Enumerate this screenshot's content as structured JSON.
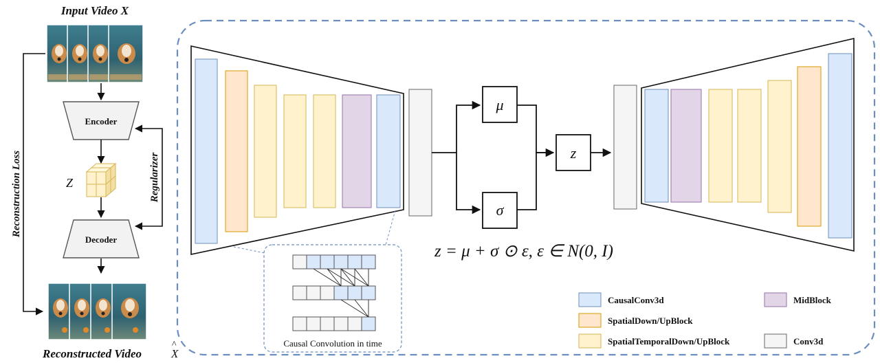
{
  "left": {
    "input_title": "Input Video X",
    "output_title_text": "Reconstructed Video",
    "output_title_symbol": "X",
    "output_title_hat": "^",
    "encoder": "Encoder",
    "decoder": "Decoder",
    "latent": "Z",
    "regularizer": "Regularizer",
    "loss": "Reconstruction Loss"
  },
  "vae": {
    "mu": "μ",
    "sigma": "σ",
    "z": "z",
    "equation": "z = μ + σ ⊙ ε, ε ∈ N(0, I)"
  },
  "causal": {
    "caption": "Causal Convolution in time"
  },
  "colors": {
    "causal_conv3d": "#dae8fc",
    "causal_conv3d_stroke": "#6c8ebf",
    "spatial_down_up": "#ffe6cc",
    "spatial_down_up_stroke": "#d79b00",
    "spatial_temporal": "#fff2cc",
    "spatial_temporal_stroke": "#d6b656",
    "mid_block": "#e1d5e7",
    "mid_block_stroke": "#9673a6",
    "conv3d": "#f5f5f5",
    "conv3d_stroke": "#666666",
    "dashed_border": "#6c8ebf"
  },
  "legend": [
    {
      "key": "causal_conv3d",
      "label": "CausalConv3d"
    },
    {
      "key": "spatial_down_up",
      "label": "SpatialDown/UpBlock"
    },
    {
      "key": "spatial_temporal",
      "label": "SpatialTemporalDown/UpBlock"
    },
    {
      "key": "mid_block",
      "label": "MidBlock"
    },
    {
      "key": "conv3d",
      "label": "Conv3d"
    }
  ]
}
